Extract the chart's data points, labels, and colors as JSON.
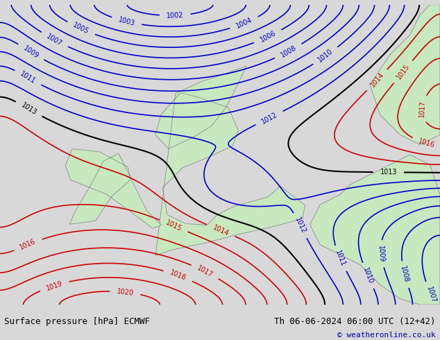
{
  "title_left": "Surface pressure [hPa] ECMWF",
  "title_right": "Th 06-06-2024 06:00 UTC (12+42)",
  "copyright": "© weatheronline.co.uk",
  "bg_color": "#d8d8d8",
  "land_color": "#c8e8c0",
  "sea_color": "#d8d8d8",
  "blue_contour_color": "#0000cc",
  "red_contour_color": "#cc0000",
  "black_contour_color": "#000000",
  "text_color": "#000000",
  "blue_levels": [
    1002,
    1003,
    1004,
    1005,
    1006,
    1007,
    1008,
    1009,
    1010,
    1011,
    1012
  ],
  "red_levels": [
    1014,
    1015,
    1016,
    1017,
    1018,
    1019,
    1020
  ],
  "black_levels": [
    1013
  ],
  "figsize": [
    6.34,
    4.9
  ],
  "dpi": 100
}
